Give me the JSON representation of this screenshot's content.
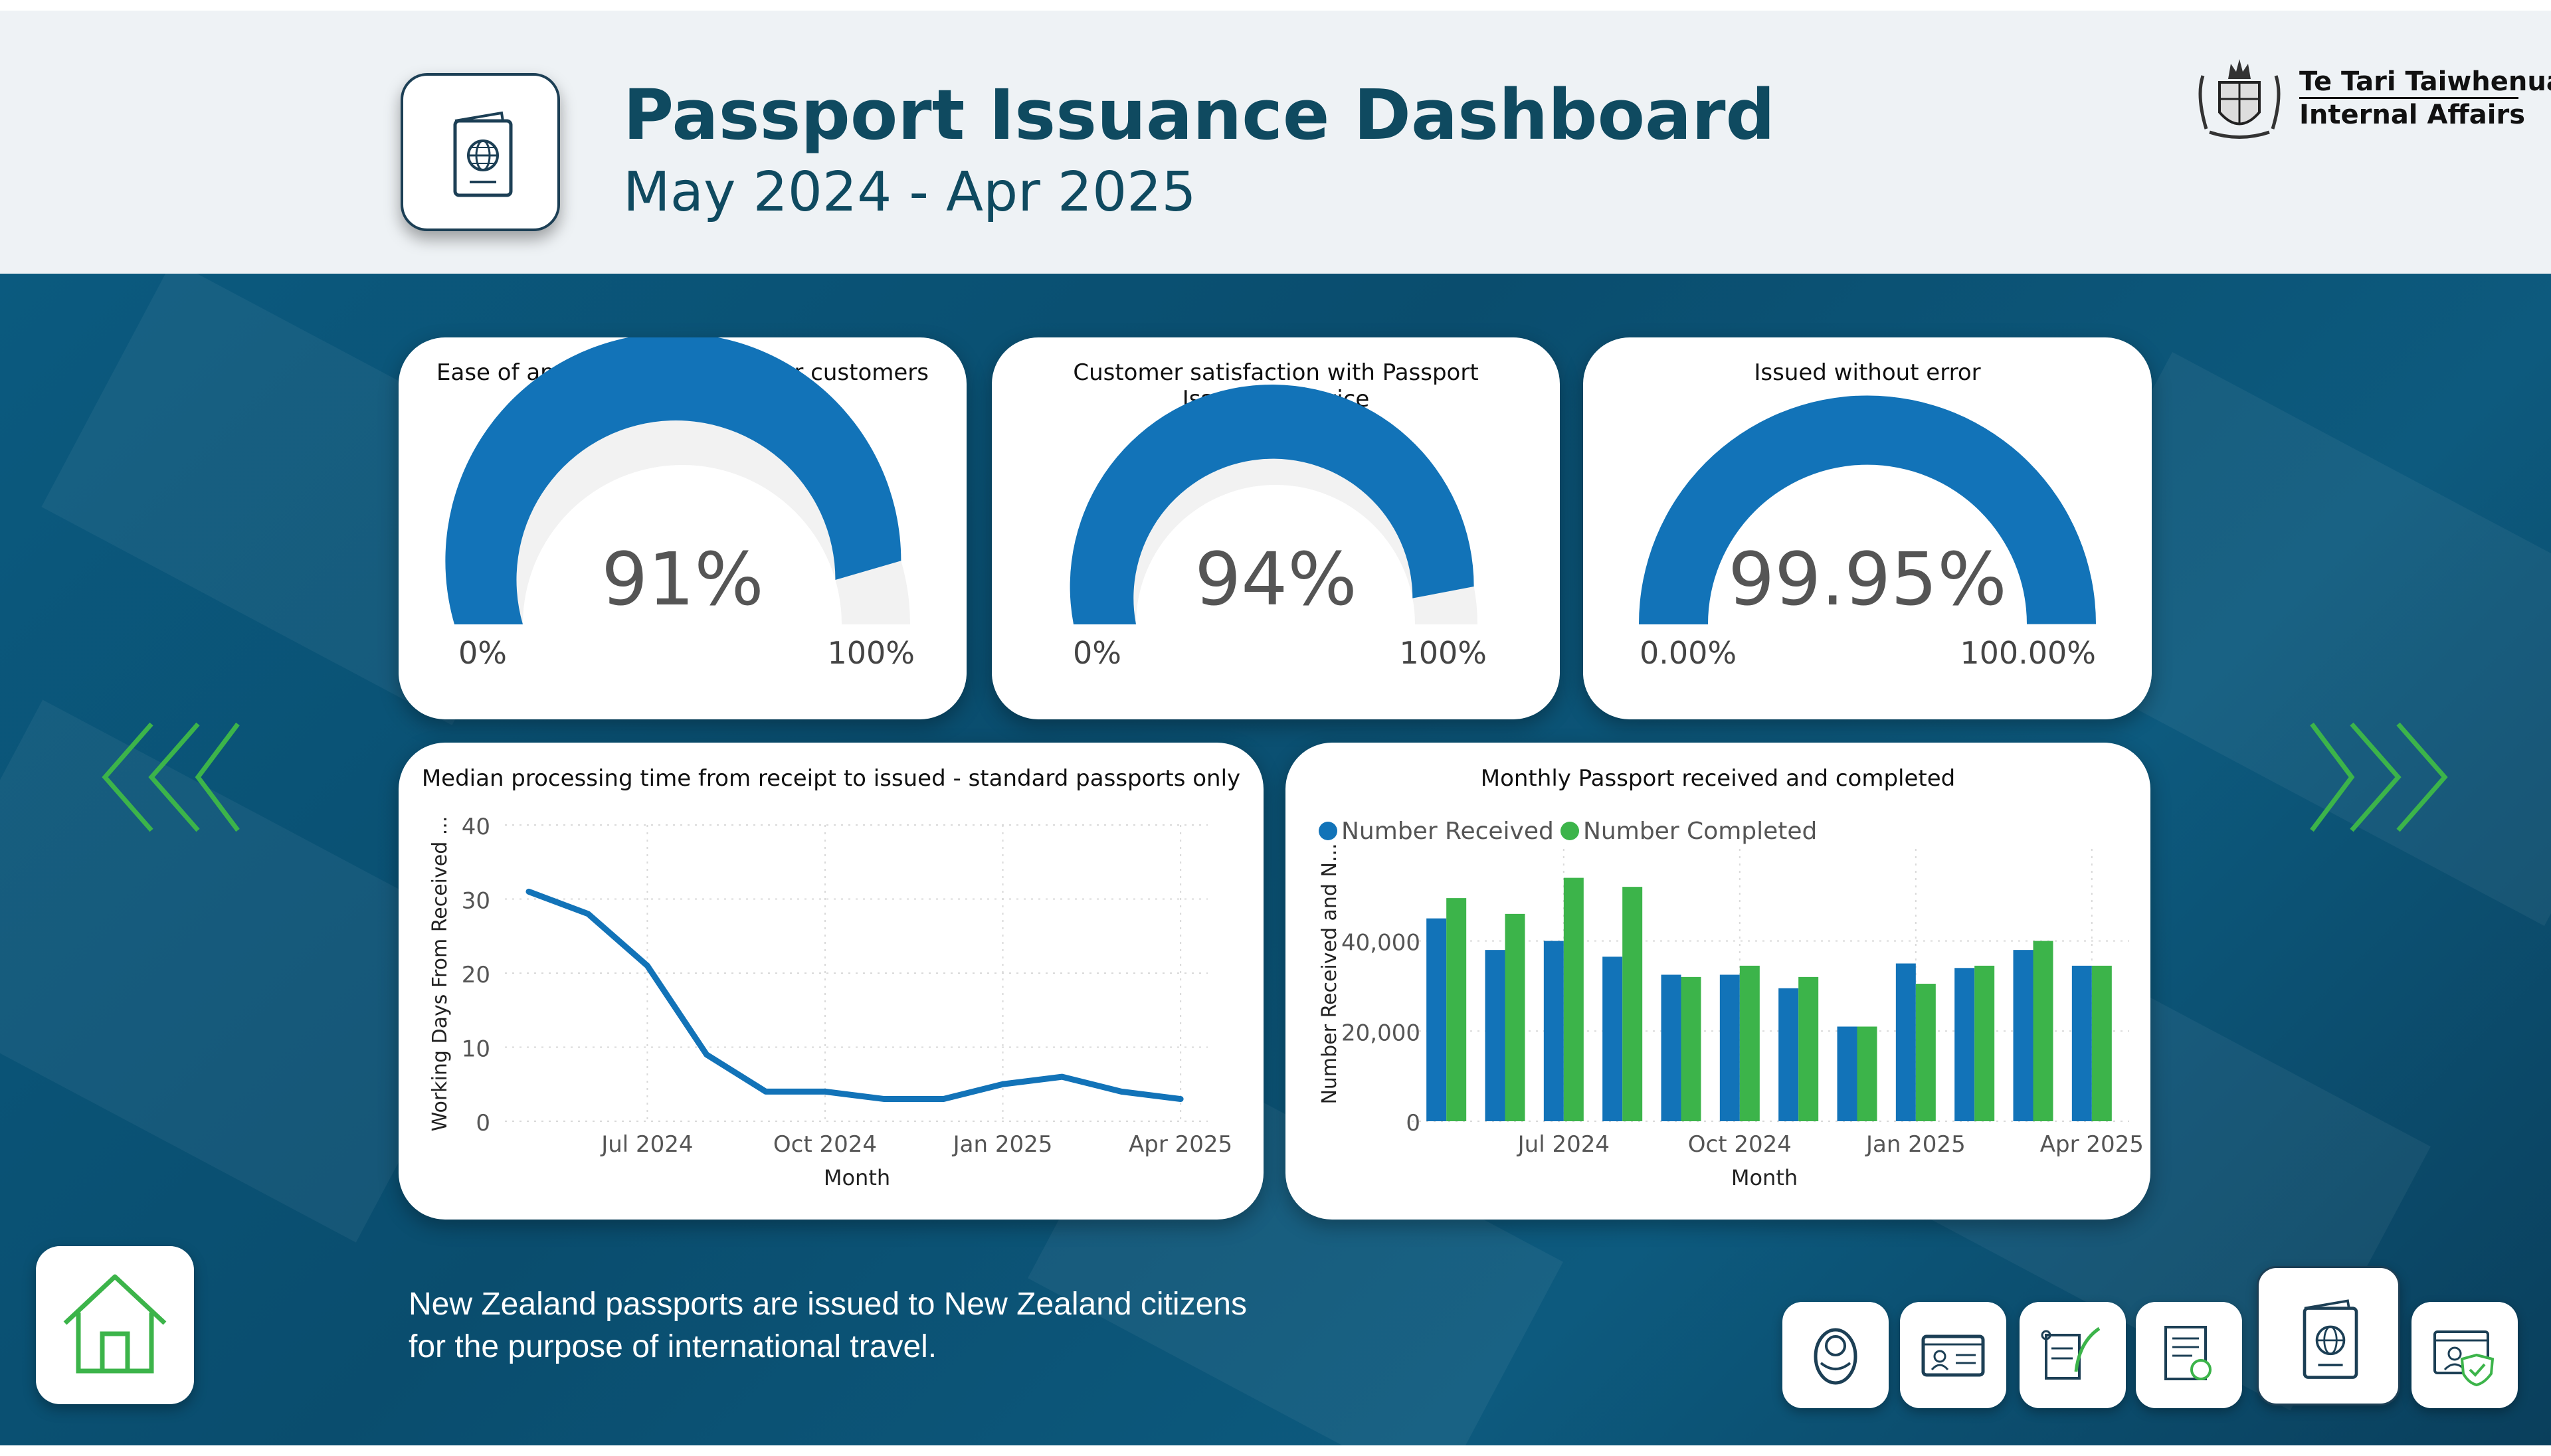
{
  "header": {
    "title": "Passport Issuance Dashboard",
    "subtitle": "May 2024 - Apr 2025",
    "logo_icon": "passport-icon",
    "org_name_maori": "Te Tari Taiwhenua",
    "org_name_english": "Internal Affairs"
  },
  "gauges": [
    {
      "title": "Ease of applying for Passport for customers",
      "value_label": "91%",
      "value": 0.91,
      "min_label": "0%",
      "max_label": "100%"
    },
    {
      "title": "Customer satisfaction with Passport Issuance service",
      "value_label": "94%",
      "value": 0.94,
      "min_label": "0%",
      "max_label": "100%"
    },
    {
      "title": "Issued without error",
      "value_label": "99.95%",
      "value": 0.9995,
      "min_label": "0.00%",
      "max_label": "100.00%"
    }
  ],
  "colors": {
    "primary_blue": "#1273b8",
    "primary_green": "#3cb44a",
    "header_bg": "#eef2f5",
    "title_color": "#0f4a60",
    "main_bg": "#0b5a7f"
  },
  "chart_data": [
    {
      "type": "line",
      "title": "Median processing time from receipt to issued - standard passports only",
      "xlabel": "Month",
      "ylabel": "Working Days From Received ...",
      "x": [
        "2024-05",
        "2024-06",
        "2024-07",
        "2024-08",
        "2024-09",
        "2024-10",
        "2024-11",
        "2024-12",
        "2025-01",
        "2025-02",
        "2025-03",
        "2025-04"
      ],
      "x_ticks": [
        "Jul 2024",
        "Oct 2024",
        "Jan 2025",
        "Apr 2025"
      ],
      "y_ticks": [
        "0",
        "10",
        "20",
        "30",
        "40"
      ],
      "ylim": [
        0,
        40
      ],
      "series": [
        {
          "values": [
            31,
            28,
            21,
            9,
            4,
            4,
            3,
            3,
            5,
            6,
            4,
            3
          ]
        }
      ],
      "grid": true
    },
    {
      "type": "bar",
      "title": "Monthly Passport received and completed",
      "xlabel": "Month",
      "ylabel": "Number Received and N...",
      "categories": [
        "2024-05",
        "2024-06",
        "2024-07",
        "2024-08",
        "2024-09",
        "2024-10",
        "2024-11",
        "2024-12",
        "2025-01",
        "2025-02",
        "2025-03",
        "2025-04"
      ],
      "x_ticks": [
        "Jul 2024",
        "Oct 2024",
        "Jan 2025",
        "Apr 2025"
      ],
      "y_ticks": [
        "0",
        "20,000",
        "40,000"
      ],
      "ylim": [
        0,
        56000
      ],
      "legend_position": "top-left",
      "series": [
        {
          "name": "Number Received",
          "color": "#1273b8",
          "values": [
            45000,
            38000,
            40000,
            36500,
            32500,
            32500,
            29500,
            21000,
            35000,
            34000,
            38000,
            34500
          ]
        },
        {
          "name": "Number Completed",
          "color": "#3cb44a",
          "values": [
            49500,
            46000,
            54000,
            52000,
            32000,
            34500,
            32000,
            21000,
            30500,
            34500,
            40000,
            34500
          ]
        }
      ],
      "grid": true
    }
  ],
  "footer": {
    "description_line1": "New Zealand passports are issued to New Zealand citizens",
    "description_line2": "for the purpose of international travel."
  },
  "nav": {
    "previous_icon": "chevrons-left-icon",
    "next_icon": "chevrons-right-icon",
    "home_icon": "home-icon",
    "buttons": [
      {
        "icon": "baby-icon"
      },
      {
        "icon": "id-card-icon"
      },
      {
        "icon": "scroll-quill-icon"
      },
      {
        "icon": "certificate-icon"
      },
      {
        "icon": "passport-icon",
        "active": true
      },
      {
        "icon": "online-identity-icon"
      }
    ]
  }
}
